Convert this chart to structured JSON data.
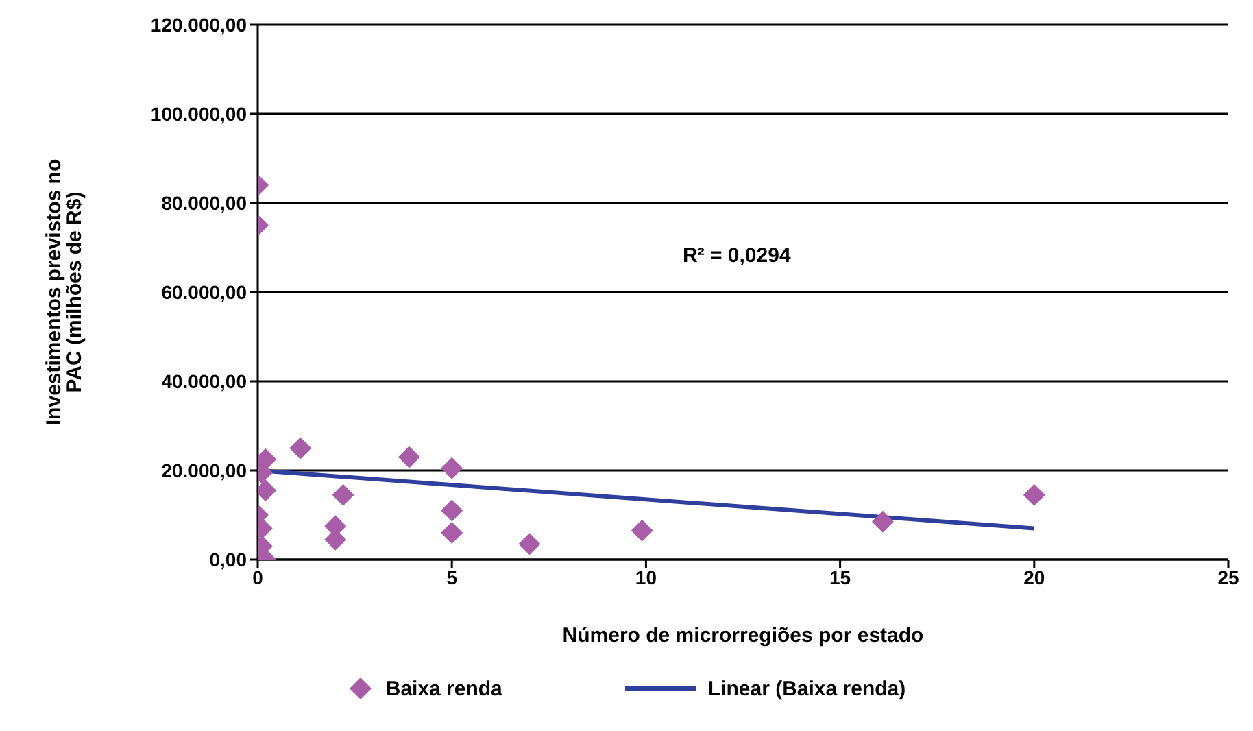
{
  "chart_data": {
    "type": "scatter",
    "xlabel": "Número de microrregiões por estado",
    "ylabel": "Investimentos previstos no PAC (milhões de R$)",
    "annotations": [
      "R² = 0,0294"
    ],
    "series": [
      {
        "name": "Baixa renda",
        "color": "#a95ca8",
        "marker": "diamond",
        "x": [
          0,
          0,
          0.2,
          0.1,
          0.2,
          0,
          0.1,
          0.1,
          0.2,
          1.1,
          2.2,
          2,
          2,
          3.9,
          5,
          5,
          5,
          7,
          9.9,
          16.1,
          20
        ],
        "values": [
          84000,
          75000,
          22500,
          19500,
          15500,
          10000,
          7000,
          3000,
          0,
          25000,
          14500,
          7500,
          4500,
          23000,
          20500,
          11000,
          6000,
          3500,
          6500,
          8500,
          14500
        ]
      },
      {
        "name": "Linear (Baixa renda)",
        "type": "line",
        "color": "#2e3f9e",
        "marker": "none",
        "x": [
          0,
          20
        ],
        "values": [
          20000,
          7000
        ]
      }
    ],
    "xlim": [
      0,
      25
    ],
    "xticks": [
      0,
      5,
      10,
      15,
      20,
      25
    ],
    "ylim": [
      0,
      120000
    ],
    "yticks": [
      {
        "value": 0,
        "label": "0,00"
      },
      {
        "value": 20000,
        "label": "20.000,00"
      },
      {
        "value": 40000,
        "label": "40.000,00"
      },
      {
        "value": 60000,
        "label": "60.000,00"
      },
      {
        "value": 80000,
        "label": "80.000,00"
      },
      {
        "value": 100000,
        "label": "100.000,00"
      },
      {
        "value": 120000,
        "label": "120.000,00"
      }
    ],
    "grid": "y",
    "legend": "bottom"
  }
}
